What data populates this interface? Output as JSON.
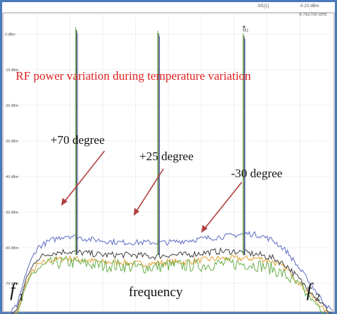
{
  "chart_data": {
    "type": "line",
    "title": "RF power variation during temperature variation",
    "xlabel": "frequency",
    "x_start_label": {
      "letter": "f",
      "sub": "1"
    },
    "x_end_label": {
      "letter": "f",
      "sub": "2"
    },
    "yunit": "dBm",
    "ylim": [
      -78,
      6
    ],
    "yticks": [
      {
        "label": "0 dBm",
        "value": 0
      },
      {
        "label": "-10 dBm",
        "value": -10
      },
      {
        "label": "-20 dBm",
        "value": -20
      },
      {
        "label": "-30 dBm",
        "value": -30
      },
      {
        "label": "-40 dBm",
        "value": -40
      },
      {
        "label": "-50 dBm",
        "value": -50
      },
      {
        "label": "-60 dBm",
        "value": -60
      },
      {
        "label": "-70 dBm",
        "value": -70
      }
    ],
    "marker": {
      "label": "M1[1]",
      "level": "-0.23 dBm",
      "freq": "9.761700 GHz",
      "tag": "M1"
    },
    "grid": true,
    "series": [
      {
        "name": "+70 degree",
        "color": "#6a78c8",
        "x": [
          0,
          0.04,
          0.07,
          0.1,
          0.14,
          0.19,
          0.25,
          0.3,
          0.35,
          0.4,
          0.45,
          0.5,
          0.55,
          0.6,
          0.65,
          0.7,
          0.74,
          0.78,
          0.82,
          0.86,
          0.9,
          0.94,
          0.97,
          1.0
        ],
        "y": [
          -80,
          -76,
          -66,
          -60,
          -58,
          -56.5,
          -57.5,
          -58,
          -58.5,
          -58.5,
          -58.5,
          -58.5,
          -58,
          -57.5,
          -57,
          -56.5,
          -56,
          -56.5,
          -58,
          -61,
          -66,
          -71,
          -75,
          -78
        ]
      },
      {
        "name": "+25 degree",
        "color": "#404040",
        "x": [
          0,
          0.04,
          0.07,
          0.1,
          0.14,
          0.19,
          0.25,
          0.3,
          0.35,
          0.4,
          0.45,
          0.5,
          0.55,
          0.6,
          0.65,
          0.7,
          0.74,
          0.78,
          0.82,
          0.86,
          0.9,
          0.94,
          0.97,
          1.0
        ],
        "y": [
          -81,
          -77,
          -68,
          -63,
          -61.5,
          -61,
          -61.5,
          -62,
          -62,
          -62,
          -62.5,
          -62,
          -62,
          -61.5,
          -61,
          -61,
          -61.5,
          -62,
          -63,
          -65,
          -69,
          -73,
          -76,
          -79
        ]
      },
      {
        "name": "-30 degree",
        "color": "#6ab04c",
        "x": [
          0,
          0.04,
          0.07,
          0.1,
          0.14,
          0.19,
          0.25,
          0.3,
          0.35,
          0.4,
          0.45,
          0.5,
          0.55,
          0.6,
          0.65,
          0.7,
          0.74,
          0.78,
          0.82,
          0.86,
          0.9,
          0.94,
          0.97,
          1.0
        ],
        "y": [
          -82,
          -78,
          -70,
          -66,
          -64.5,
          -64,
          -64.5,
          -65,
          -65,
          -65.5,
          -65.5,
          -65,
          -65,
          -65,
          -64.5,
          -64.5,
          -64.5,
          -65,
          -66,
          -68,
          -71,
          -75,
          -78,
          -81
        ]
      },
      {
        "name": "",
        "color": "#e0a030",
        "x": [
          0,
          0.04,
          0.07,
          0.1,
          0.14,
          0.19,
          0.25,
          0.3,
          0.35,
          0.4,
          0.45,
          0.5,
          0.55,
          0.6,
          0.65,
          0.7,
          0.74,
          0.78,
          0.82,
          0.86,
          0.9,
          0.94,
          0.97,
          1.0
        ],
        "y": [
          -82,
          -78,
          -69,
          -65,
          -63.5,
          -63,
          -63.5,
          -64,
          -64,
          -64.5,
          -64.5,
          -64,
          -64,
          -63.5,
          -63,
          -63,
          -63,
          -63,
          -64,
          -66,
          -70,
          -74,
          -77,
          -80
        ]
      }
    ],
    "carriers": [
      {
        "x": 0.22,
        "peak": 2
      },
      {
        "x": 0.47,
        "peak": 1
      },
      {
        "x": 0.73,
        "peak": 0.3
      }
    ],
    "annotations": [
      {
        "text": "+70 degree"
      },
      {
        "text": "+25 degree"
      },
      {
        "text": "-30 degree"
      }
    ]
  }
}
